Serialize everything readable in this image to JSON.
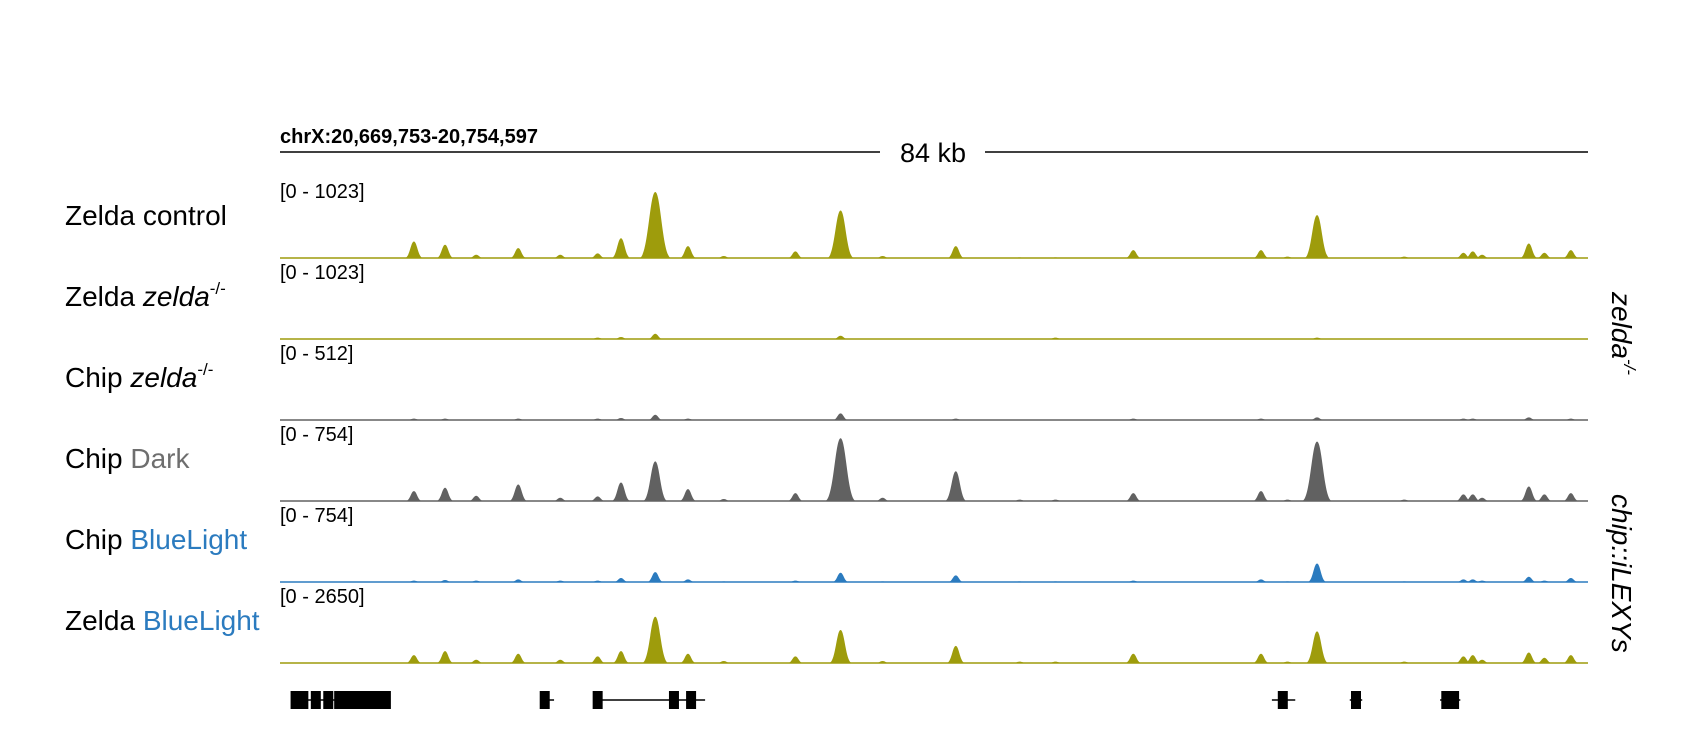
{
  "locus": "chrX:20,669,753-20,754,597",
  "scale": "84 kb",
  "colors": {
    "olive": "#9e9c0c",
    "gray": "#616161",
    "blue": "#2b7bbf",
    "gene": "#000000"
  },
  "chart_data": {
    "type": "area",
    "x_range_kb": [
      0,
      84
    ],
    "peak_positions_kb": [
      8.6,
      10.6,
      12.6,
      15.3,
      18,
      20.4,
      21.9,
      24.1,
      26.2,
      28.5,
      33.1,
      36,
      38.7,
      43.4,
      47.5,
      49.8,
      54.8,
      63,
      64.7,
      66.6,
      72.2,
      76,
      76.6,
      77.2,
      80.2,
      81.2,
      82.9
    ],
    "tracks": [
      {
        "label": "Zelda control",
        "label_main": "Zelda control",
        "label_sup": "",
        "label_colored": "",
        "range": "[0 - 1023]",
        "color": "olive",
        "group": "",
        "heights": [
          0.25,
          0.2,
          0.05,
          0.15,
          0.05,
          0.07,
          0.3,
          1.0,
          0.18,
          0.03,
          0.1,
          0.72,
          0.03,
          0.18,
          0.01,
          0.01,
          0.12,
          0.12,
          0.02,
          0.65,
          0.02,
          0.08,
          0.1,
          0.05,
          0.22,
          0.08,
          0.12
        ]
      },
      {
        "label": "Zelda zelda-/-",
        "label_main": "Zelda ",
        "label_italic": "zelda",
        "label_sup": "-/-",
        "label_colored": "",
        "range": "[0 - 1023]",
        "color": "olive",
        "group": "zelda-/-",
        "heights": [
          0,
          0,
          0,
          0,
          0,
          0.02,
          0.03,
          0.08,
          0,
          0,
          0,
          0.05,
          0,
          0,
          0,
          0.02,
          0,
          0,
          0,
          0.02,
          0,
          0,
          0,
          0,
          0,
          0,
          0
        ]
      },
      {
        "label": "Chip zelda-/-",
        "label_main": "Chip ",
        "label_italic": "zelda",
        "label_sup": "-/-",
        "label_colored": "",
        "range": "[0 - 512]",
        "color": "gray",
        "group": "zelda-/-",
        "heights": [
          0.02,
          0.02,
          0,
          0.02,
          0,
          0.02,
          0.03,
          0.08,
          0.02,
          0,
          0,
          0.1,
          0,
          0.02,
          0,
          0,
          0.02,
          0.02,
          0,
          0.04,
          0,
          0.02,
          0.02,
          0,
          0.04,
          0,
          0.02
        ]
      },
      {
        "label": "Chip Dark",
        "label_main": "Chip ",
        "label_sup": "",
        "label_colored": "Dark",
        "colored_hex": "#6e6e6e",
        "range": "[0 - 754]",
        "color": "gray",
        "group": "",
        "heights": [
          0.15,
          0.2,
          0.08,
          0.25,
          0.05,
          0.07,
          0.28,
          0.6,
          0.18,
          0.03,
          0.12,
          0.95,
          0.05,
          0.45,
          0.02,
          0.02,
          0.12,
          0.15,
          0.02,
          0.9,
          0.02,
          0.1,
          0.1,
          0.05,
          0.22,
          0.1,
          0.12
        ]
      },
      {
        "label": "Chip BlueLight",
        "label_main": "Chip ",
        "label_sup": "",
        "label_colored": "BlueLight",
        "colored_hex": "#2b7bbf",
        "range": "[0 - 754]",
        "color": "blue",
        "group": "chip::iLEXYs",
        "heights": [
          0.02,
          0.03,
          0.02,
          0.04,
          0.02,
          0.02,
          0.06,
          0.15,
          0.04,
          0.01,
          0.02,
          0.14,
          0.01,
          0.1,
          0.01,
          0.01,
          0.02,
          0.04,
          0.01,
          0.28,
          0.01,
          0.04,
          0.04,
          0.02,
          0.08,
          0.02,
          0.06
        ]
      },
      {
        "label": "Zelda BlueLight",
        "label_main": "Zelda ",
        "label_sup": "",
        "label_colored": "BlueLight",
        "colored_hex": "#2b7bbf",
        "range": "[0 - 2650]",
        "color": "olive",
        "group": "chip::iLEXYs",
        "heights": [
          0.12,
          0.18,
          0.05,
          0.14,
          0.05,
          0.1,
          0.18,
          0.7,
          0.14,
          0.03,
          0.1,
          0.5,
          0.03,
          0.26,
          0.02,
          0.02,
          0.14,
          0.14,
          0.02,
          0.48,
          0.02,
          0.1,
          0.12,
          0.05,
          0.16,
          0.08,
          0.12
        ]
      }
    ],
    "group_labels": [
      "zelda",
      "-/-",
      "chip::iLEXYs"
    ],
    "genes": [
      {
        "start_kb": 1.0,
        "end_kb": 6.9,
        "exons_kb": [
          1.0,
          1.5,
          2.3,
          3.1,
          3.8,
          4.4,
          5.0,
          5.6,
          6.2,
          6.8
        ]
      },
      {
        "start_kb": 16.9,
        "end_kb": 17.6,
        "exons_kb": [
          17.0
        ]
      },
      {
        "start_kb": 20.3,
        "end_kb": 27.3,
        "exons_kb": [
          20.4,
          25.3,
          26.4
        ]
      },
      {
        "start_kb": 63.7,
        "end_kb": 65.2,
        "exons_kb": [
          64.4
        ]
      },
      {
        "start_kb": 68.7,
        "end_kb": 69.5,
        "exons_kb": [
          69.1
        ]
      },
      {
        "start_kb": 74.5,
        "end_kb": 75.8,
        "exons_kb": [
          74.9,
          75.4
        ]
      }
    ]
  }
}
